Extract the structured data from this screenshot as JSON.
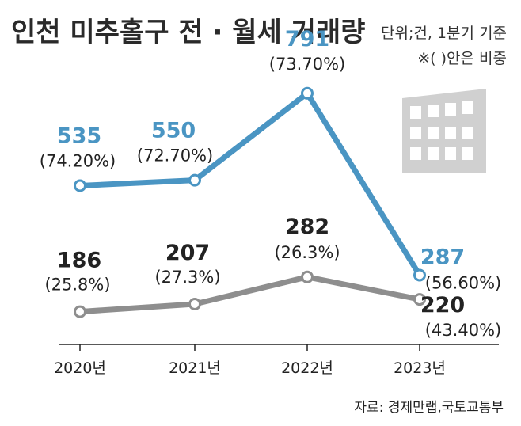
{
  "title": "인천 미추홀구 전 · 월세 거래량",
  "unit_note": "단위;건, 1분기 기준",
  "ratio_note": "※(  )안은 비중",
  "source": "자료: 경제만랩,국토교통부",
  "colors": {
    "series_top": "#4a95c3",
    "series_bottom": "#8e8e8e",
    "building": "#d0d0d0"
  },
  "icon": "building-icon",
  "chart_data": {
    "type": "line",
    "categories": [
      "2020년",
      "2021년",
      "2022년",
      "2023년"
    ],
    "ylim": [
      150,
      830
    ],
    "grid": false,
    "series": [
      {
        "values": [
          535,
          550,
          791,
          287
        ],
        "value_labels": [
          "535",
          "550",
          "791",
          "287"
        ],
        "share_labels": [
          "(74.20%)",
          "(72.70%)",
          "(73.70%)",
          "(56.60%)"
        ]
      },
      {
        "values": [
          186,
          207,
          282,
          220
        ],
        "value_labels": [
          "186",
          "207",
          "282",
          "220"
        ],
        "share_labels": [
          "(25.8%)",
          "(27.3%)",
          "(26.3%)",
          "(43.40%)"
        ]
      }
    ]
  }
}
